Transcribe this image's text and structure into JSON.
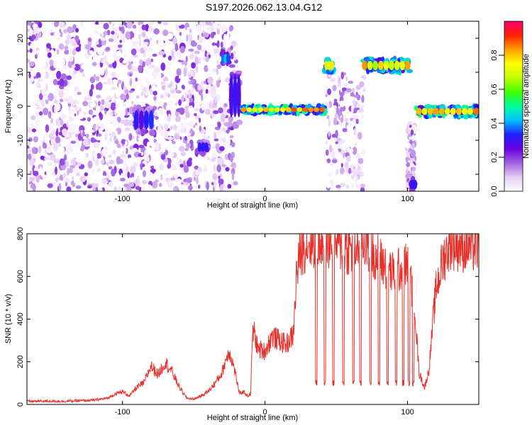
{
  "title": "S197.2026.062.13.04.G12",
  "chart_data": [
    {
      "type": "heatmap",
      "title": "S197.2026.062.13.04.G12",
      "xlabel": "Height of straight line (km)",
      "ylabel": "Frequency (Hz)",
      "xlim": [
        -167,
        150
      ],
      "ylim": [
        -25,
        25
      ],
      "xticks": [
        -100,
        0,
        100
      ],
      "yticks": [
        -20,
        -10,
        0,
        10,
        20
      ],
      "colorbar": {
        "label": "Normalized spectral amplitude",
        "range": [
          0,
          1
        ],
        "ticks": [
          0.0,
          0.2,
          0.4,
          0.6,
          0.8
        ],
        "colors": [
          "#ffffff",
          "#e6ccf5",
          "#a060e0",
          "#6a00e0",
          "#2020ff",
          "#00c0ff",
          "#00ffa0",
          "#40ff00",
          "#c0ff00",
          "#ffff00",
          "#ffa000",
          "#ff2000",
          "#ff0070"
        ]
      },
      "noise_region": {
        "x": [
          -167,
          -20
        ],
        "freq": [
          -25,
          25
        ],
        "amplitude": 0.2
      },
      "noise_bands": [
        {
          "x": [
            43,
            70
          ],
          "freq": [
            -25,
            10
          ],
          "amplitude": 0.15
        },
        {
          "x": [
            100,
            105
          ],
          "freq": [
            -25,
            -5
          ],
          "amplitude": 0.15
        }
      ],
      "features": [
        {
          "x": [
            -92,
            -78
          ],
          "freq": [
            -8,
            0
          ],
          "amplitude": 0.35
        },
        {
          "x": [
            -47,
            -40
          ],
          "freq": [
            -14,
            -10
          ],
          "amplitude": 0.4
        },
        {
          "x": [
            -30,
            -25
          ],
          "freq": [
            12,
            16
          ],
          "amplitude": 0.45
        },
        {
          "x": [
            -25,
            -17
          ],
          "freq": [
            -6,
            12
          ],
          "amplitude": 0.35
        },
        {
          "x": [
            -17,
            42
          ],
          "freq": [
            -2,
            0
          ],
          "amplitude": 0.9
        },
        {
          "x": [
            42,
            48
          ],
          "freq": [
            10,
            14
          ],
          "amplitude": 0.8
        },
        {
          "x": [
            68,
            102
          ],
          "freq": [
            10,
            14
          ],
          "amplitude": 0.85
        },
        {
          "x": [
            102,
            106
          ],
          "freq": [
            -25,
            -21
          ],
          "amplitude": 0.35
        },
        {
          "x": [
            106,
            150
          ],
          "freq": [
            -3,
            0
          ],
          "amplitude": 0.9
        }
      ]
    },
    {
      "type": "line",
      "xlabel": "Height of straight line (km)",
      "ylabel": "SNR (10 * v/v)",
      "xlim": [
        -167,
        150
      ],
      "ylim": [
        0,
        800
      ],
      "xticks": [
        -100,
        0,
        100
      ],
      "yticks": [
        0,
        200,
        400,
        600,
        800
      ],
      "series": [
        {
          "name": "SNR",
          "color": "#e8302a",
          "x": [
            -167,
            -140,
            -120,
            -110,
            -105,
            -100,
            -95,
            -90,
            -85,
            -80,
            -75,
            -70,
            -65,
            -60,
            -55,
            -50,
            -45,
            -40,
            -35,
            -30,
            -28,
            -25,
            -22,
            -20,
            -18,
            -15,
            -12,
            -10,
            -9,
            -8,
            -5,
            0,
            5,
            10,
            15,
            20,
            22,
            25,
            30,
            40,
            50,
            60,
            70,
            80,
            90,
            100,
            105,
            108,
            112,
            115,
            118,
            120,
            125,
            130,
            140,
            150
          ],
          "y": [
            15,
            15,
            20,
            30,
            50,
            60,
            40,
            80,
            100,
            180,
            140,
            200,
            150,
            80,
            30,
            25,
            40,
            60,
            100,
            150,
            200,
            250,
            180,
            120,
            50,
            60,
            40,
            50,
            300,
            350,
            260,
            250,
            320,
            300,
            280,
            330,
            600,
            720,
            760,
            770,
            760,
            720,
            770,
            680,
            610,
            660,
            480,
            150,
            80,
            160,
            400,
            540,
            680,
            760,
            740,
            740
          ]
        }
      ],
      "dropouts": {
        "x": [
          36,
          42,
          48,
          55,
          62,
          67,
          74,
          80,
          86,
          92,
          97,
          101,
          104
        ],
        "value": 100
      }
    }
  ]
}
